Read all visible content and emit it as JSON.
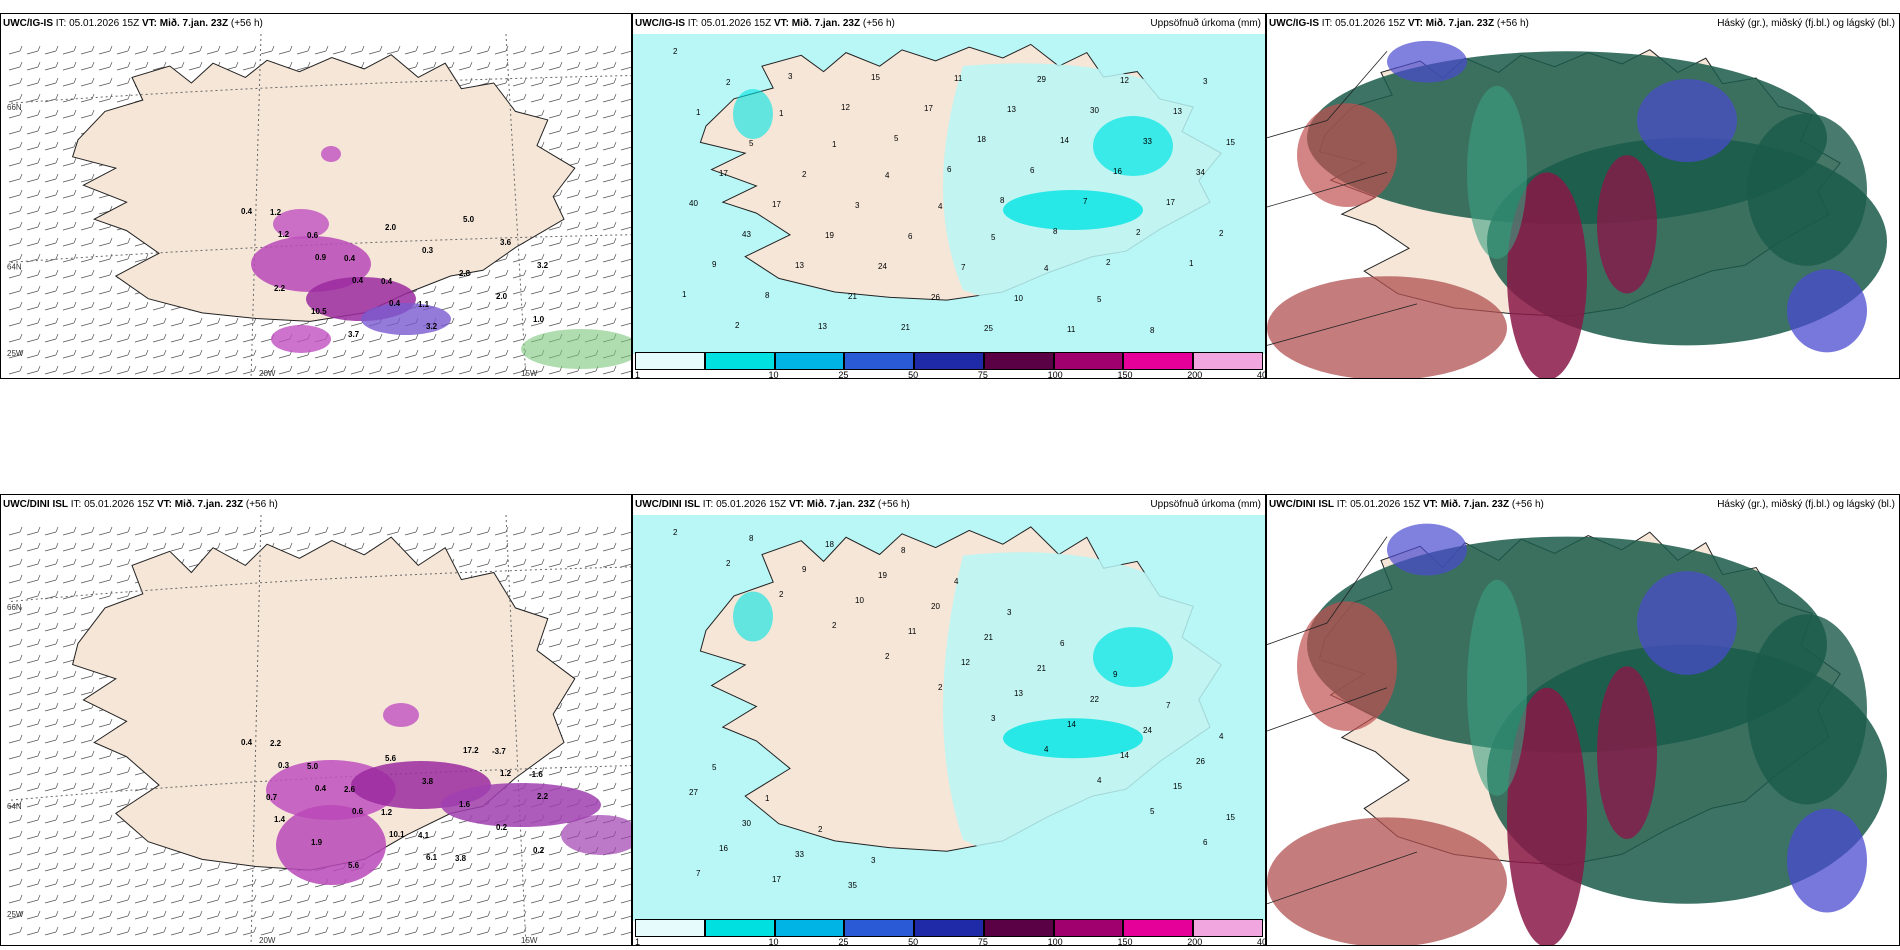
{
  "row1": {
    "panel1_title": {
      "model": "UWC/IG-IS",
      "it_label": "IT:",
      "it": "05.01.2026 15Z",
      "vt_label": "VT:",
      "vt": "Mið. 7.jan. 23Z",
      "lead": "(+56 h)"
    },
    "panel2_title": {
      "model": "UWC/IG-IS",
      "it_label": "IT:",
      "it": "05.01.2026 15Z",
      "vt_label": "VT:",
      "vt": "Mið. 7.jan. 23Z",
      "lead": "(+56 h)",
      "right": "Uppsöfnuð úrkoma (mm)"
    },
    "panel3_title": {
      "model": "UWC/IG-IS",
      "it_label": "IT:",
      "it": "05.01.2026 15Z",
      "vt_label": "VT:",
      "vt": "Mið. 7.jan. 23Z",
      "lead": "(+56 h)",
      "right": "Háský (gr.), miðský (fj.bl.) og lágský (bl.)"
    },
    "panel1_values": [
      "0.4",
      "1.2",
      "0.9",
      "0.4",
      "0.4",
      "3.2",
      "5.0",
      "3.6",
      "3.2",
      "2.2",
      "10.5",
      "3.7",
      "2.0",
      "0.3",
      "2.8",
      "2.0",
      "1.0",
      "1.2",
      "0.6",
      "0.4",
      "0.4",
      "1.1"
    ],
    "panel2_values": [
      "2",
      "2",
      "1",
      "1",
      "4",
      "4",
      "5",
      "4",
      "5",
      "8",
      "3",
      "1",
      "5",
      "2",
      "3",
      "6",
      "7",
      "10",
      "11",
      "12",
      "13",
      "15",
      "17",
      "17",
      "19",
      "24",
      "26",
      "25",
      "29",
      "30",
      "33",
      "34",
      "40",
      "43",
      "13",
      "21",
      "21",
      "11",
      "13",
      "14",
      "16",
      "17",
      "2",
      "9",
      "8",
      "13",
      "15",
      "17",
      "18",
      "6",
      "7",
      "2",
      "1",
      "1",
      "2",
      "3",
      "12",
      "5",
      "6",
      "8",
      "8",
      "2"
    ],
    "panel1_grid": {
      "lon1": "20W",
      "lon2": "15W",
      "lat1": "66N",
      "lat2": "64N",
      "lon0": "25W"
    }
  },
  "row2": {
    "panel1_title": {
      "model": "UWC/DINI ISL",
      "it_label": "IT:",
      "it": "05.01.2026 15Z",
      "vt_label": "VT:",
      "vt": "Mið. 7.jan. 23Z",
      "lead": "(+56 h)"
    },
    "panel2_title": {
      "model": "UWC/DINI ISL",
      "it_label": "IT:",
      "it": "05.01.2026 15Z",
      "vt_label": "VT:",
      "vt": "Mið. 7.jan. 23Z",
      "lead": "(+56 h)",
      "right": "Uppsöfnuð úrkoma (mm)"
    },
    "panel3_title": {
      "model": "UWC/DINI ISL",
      "it_label": "IT:",
      "it": "05.01.2026 15Z",
      "vt_label": "VT:",
      "vt": "Mið. 7.jan. 23Z",
      "lead": "(+56 h)",
      "right": "Háský (gr.), miðský (fj.bl.) og lágský (bl.)"
    },
    "panel1_values": [
      "0.4",
      "0.3",
      "0.4",
      "0.6",
      "10.1",
      "6.1",
      "17.2",
      "1.2",
      "2.2",
      "1.4",
      "1.9",
      "5.6",
      "5.6",
      "3.8",
      "1.6",
      "0.2",
      "0.2",
      "2.2",
      "5.0",
      "2.6",
      "1.2",
      "4.1",
      "3.8",
      "-3.7",
      "-1.6",
      "0.7"
    ],
    "panel2_values": [
      "2",
      "2",
      "2",
      "2",
      "2",
      "2",
      "3",
      "4",
      "4",
      "5",
      "6",
      "7",
      "8",
      "9",
      "10",
      "11",
      "12",
      "13",
      "14",
      "14",
      "15",
      "15",
      "16",
      "17",
      "18",
      "19",
      "20",
      "21",
      "21",
      "22",
      "24",
      "26",
      "27",
      "30",
      "33",
      "35",
      "8",
      "4",
      "3",
      "6",
      "9",
      "7",
      "4",
      "5",
      "1",
      "2",
      "3"
    ],
    "panel1_grid": {
      "lon1": "20W",
      "lon2": "15W",
      "lat1": "66N",
      "lat2": "64N",
      "lon0": "25W"
    }
  },
  "colorbar": {
    "ticks": [
      "1",
      "10",
      "25",
      "50",
      "75",
      "100",
      "150",
      "200",
      "400"
    ],
    "colors": [
      "#e6fbfb",
      "#00e0e0",
      "#00b4e6",
      "#2a5ad6",
      "#1e2aa8",
      "#5a0045",
      "#a0006e",
      "#e6009a",
      "#f2a6e0"
    ]
  },
  "colors": {
    "land": "#f5e6d8",
    "precip_light": "#b9f6f6",
    "precip_mid": "#00e5e5",
    "rain_magenta": "#c040c0",
    "cloud_high": "#1a5a4a",
    "cloud_mid": "#8a1848",
    "cloud_low": "#4a4ad0"
  }
}
